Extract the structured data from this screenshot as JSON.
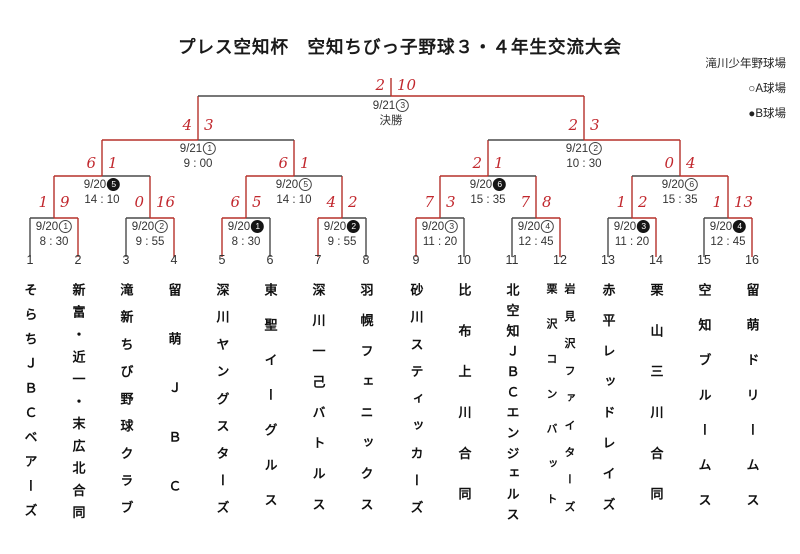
{
  "title": "プレス空知杯　空知ちびっ子野球３・４年生交流大会",
  "legend": {
    "venue": "滝川少年野球場",
    "field_a": "○A球場",
    "field_b": "●B球場"
  },
  "teams": [
    {
      "no": "1",
      "name": "そらちＪＢＣベアーズ"
    },
    {
      "no": "2",
      "name": "新富・近一・末広北合同"
    },
    {
      "no": "3",
      "name": "滝新ちび野球クラブ"
    },
    {
      "no": "4",
      "name": "留萌ＪＢＣ"
    },
    {
      "no": "5",
      "name": "深川ヤングスターズ"
    },
    {
      "no": "6",
      "name": "東聖イーグルス"
    },
    {
      "no": "7",
      "name": "深川一己バトルス"
    },
    {
      "no": "8",
      "name": "羽幌フェニックス"
    },
    {
      "no": "9",
      "name": "砂川スティッカーズ"
    },
    {
      "no": "10",
      "name": "比布上川合同"
    },
    {
      "no": "11",
      "name": "北空知ＪＢＣエンジェルス"
    },
    {
      "no": "12",
      "name": "岩見沢ファイターズ",
      "name_left": "栗沢コンバット"
    },
    {
      "no": "13",
      "name": "赤平レッドレイズ"
    },
    {
      "no": "14",
      "name": "栗山三川合同"
    },
    {
      "no": "15",
      "name": "空知ブルームス"
    },
    {
      "no": "16",
      "name": "留萌ドリームス"
    }
  ],
  "bracket": {
    "round1": [
      {
        "date": "9/20",
        "game": "1",
        "circle": "white",
        "time": "8 : 30",
        "score_left": "1",
        "score_right": "9",
        "winner": "right"
      },
      {
        "date": "9/20",
        "game": "2",
        "circle": "white",
        "time": "9 : 55",
        "score_left": "0",
        "score_right": "16",
        "winner": "right"
      },
      {
        "date": "9/20",
        "game": "1",
        "circle": "black",
        "time": "8 : 30",
        "score_left": "6",
        "score_right": "5",
        "winner": "left"
      },
      {
        "date": "9/20",
        "game": "2",
        "circle": "black",
        "time": "9 : 55",
        "score_left": "4",
        "score_right": "2",
        "winner": "left"
      },
      {
        "date": "9/20",
        "game": "3",
        "circle": "white",
        "time": "11 : 20",
        "score_left": "7",
        "score_right": "3",
        "winner": "left"
      },
      {
        "date": "9/20",
        "game": "4",
        "circle": "white",
        "time": "12 : 45",
        "score_left": "7",
        "score_right": "8",
        "winner": "right"
      },
      {
        "date": "9/20",
        "game": "3",
        "circle": "black",
        "time": "11 : 20",
        "score_left": "1",
        "score_right": "2",
        "winner": "right"
      },
      {
        "date": "9/20",
        "game": "4",
        "circle": "black",
        "time": "12 : 45",
        "score_left": "1",
        "score_right": "13",
        "winner": "right"
      }
    ],
    "quarterfinals": [
      {
        "date": "9/20",
        "game": "5",
        "circle": "black",
        "time": "14 : 10",
        "score_left": "6",
        "score_right": "1",
        "winner": "left"
      },
      {
        "date": "9/20",
        "game": "5",
        "circle": "white",
        "time": "14 : 10",
        "score_left": "6",
        "score_right": "1",
        "winner": "left"
      },
      {
        "date": "9/20",
        "game": "6",
        "circle": "black",
        "time": "15 : 35",
        "score_left": "2",
        "score_right": "1",
        "winner": "left"
      },
      {
        "date": "9/20",
        "game": "6",
        "circle": "white",
        "time": "15 : 35",
        "score_left": "0",
        "score_right": "4",
        "winner": "right"
      }
    ],
    "semifinals": [
      {
        "date": "9/21",
        "game": "1",
        "circle": "white",
        "time": "9 : 00",
        "score_left": "4",
        "score_right": "3",
        "winner": "left"
      },
      {
        "date": "9/21",
        "game": "2",
        "circle": "white",
        "time": "10 : 30",
        "score_left": "2",
        "score_right": "3",
        "winner": "right"
      }
    ],
    "final": {
      "date": "9/21",
      "game": "3",
      "circle": "white",
      "label": "決勝",
      "score_left": "2",
      "score_right": "10",
      "winner": "right"
    }
  },
  "colors": {
    "line": "#4a4a4a",
    "winner_line": "#b5312a",
    "score": "#c1272d"
  }
}
